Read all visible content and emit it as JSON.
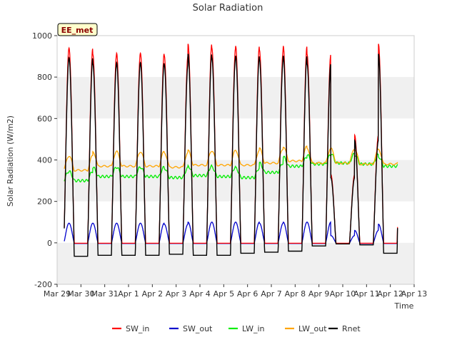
{
  "chart_data": {
    "type": "line",
    "title": "Solar Radiation",
    "xlabel": "Time",
    "ylabel": "Solar Radiation (W/m2)",
    "annotation": "EE_met",
    "xlim": [
      0,
      15
    ],
    "ylim": [
      -200,
      1000
    ],
    "yticks": [
      -200,
      0,
      200,
      400,
      600,
      800,
      1000
    ],
    "xticks": [
      {
        "x": 0,
        "label": "Mar 29"
      },
      {
        "x": 1,
        "label": "Mar 30"
      },
      {
        "x": 2,
        "label": "Mar 31"
      },
      {
        "x": 3,
        "label": "Apr 1"
      },
      {
        "x": 4,
        "label": "Apr 2"
      },
      {
        "x": 5,
        "label": "Apr 3"
      },
      {
        "x": 6,
        "label": "Apr 4"
      },
      {
        "x": 7,
        "label": "Apr 5"
      },
      {
        "x": 8,
        "label": "Apr 6"
      },
      {
        "x": 9,
        "label": "Apr 7"
      },
      {
        "x": 10,
        "label": "Apr 8"
      },
      {
        "x": 11,
        "label": "Apr 9"
      },
      {
        "x": 12,
        "label": "Apr 10"
      },
      {
        "x": 13,
        "label": "Apr 11"
      },
      {
        "x": 14,
        "label": "Apr 12"
      },
      {
        "x": 15,
        "label": "Apr 13"
      }
    ],
    "grid": "horizontal bands",
    "legend_position": "bottom",
    "data_x_range": [
      0.3,
      14.3
    ],
    "daily_values": {
      "days": [
        1,
        2,
        3,
        4,
        5,
        6,
        7,
        8,
        9,
        10,
        11,
        12,
        13,
        14
      ],
      "sw_in_peak": [
        940,
        910,
        915,
        915,
        905,
        960,
        940,
        950,
        930,
        950,
        910,
        330,
        520,
        960
      ],
      "sw_out_peak": [
        95,
        95,
        95,
        95,
        90,
        100,
        100,
        100,
        95,
        100,
        100,
        35,
        60,
        90
      ],
      "lw_in_level": [
        300,
        320,
        320,
        320,
        315,
        325,
        320,
        315,
        340,
        370,
        380,
        385,
        380,
        370
      ],
      "lw_out_level": [
        350,
        370,
        370,
        370,
        365,
        375,
        375,
        375,
        385,
        395,
        385,
        385,
        380,
        380
      ],
      "rnet_night": [
        -65,
        -60,
        -60,
        -60,
        -55,
        -60,
        -60,
        -50,
        -45,
        -40,
        -15,
        -5,
        -10,
        -50
      ]
    },
    "series": [
      {
        "name": "SW_in",
        "color": "#ff0000"
      },
      {
        "name": "SW_out",
        "color": "#0000cc"
      },
      {
        "name": "LW_in",
        "color": "#00ee00"
      },
      {
        "name": "LW_out",
        "color": "#ffa500"
      },
      {
        "name": "Rnet",
        "color": "#000000"
      }
    ]
  }
}
